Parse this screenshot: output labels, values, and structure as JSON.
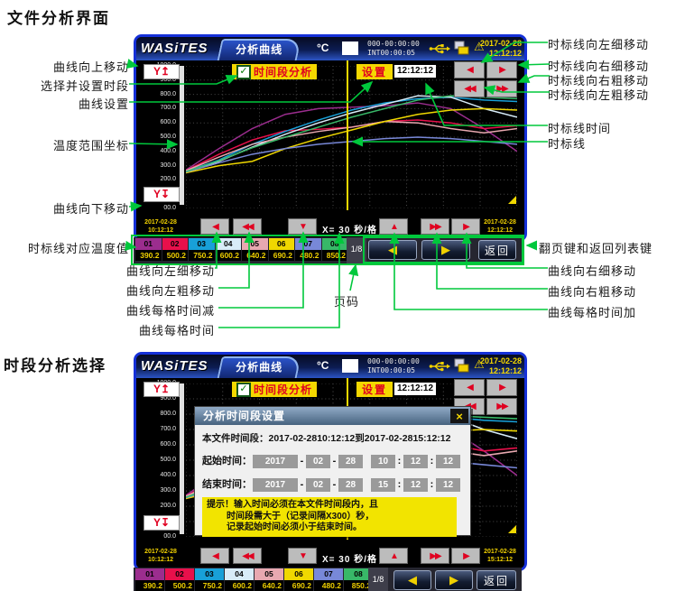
{
  "sections": {
    "file_analysis": "文件分析界面",
    "period_select": "时段分析选择"
  },
  "device": {
    "brand": "WASiTES",
    "tab": "分析曲线",
    "unit": "°C",
    "counter_line1": "000-00:00:00",
    "counter_line2": "INT00:00:05",
    "header_date": "2017-02-28",
    "header_time": "12:12:12",
    "checkbox_label": "时间段分析",
    "settings_button": "设置",
    "marker_time": "12:12:12",
    "x_scale_label": "X= 30 秒/格",
    "start_date": "2017-02-28",
    "start_time": "10:12:12",
    "end_date": "2017-02-28",
    "end_time_a": "12:12:12",
    "end_time_b": "15:12:12",
    "page_indicator": "1/8",
    "back_button": "返回",
    "glyphs": {
      "yup": "Y↥",
      "ydn": "Y↧",
      "left": "◀",
      "right": "▶",
      "left2": "◀◀",
      "right2": "▶▶",
      "up": "▲",
      "down": "▼",
      "check": "✓",
      "close": "×",
      "usb_icon": "usb-icon",
      "printer_icon": "printer-icon",
      "warning_icon": "⚠"
    }
  },
  "dialog": {
    "title": "分析时间段设置",
    "file_period_label": "本文件时间段：",
    "file_period_value": "2017-02-2810:12:12到2017-02-2815:12:12",
    "start_label": "起始时间：",
    "end_label": "结束时间：",
    "start_parts": [
      "2017",
      "02",
      "28",
      "10",
      "12",
      "12"
    ],
    "end_parts": [
      "2017",
      "02",
      "28",
      "15",
      "12",
      "12"
    ],
    "hint_lines": [
      "提示！输入时间必须在本文件时间段内，且",
      "时间段需大于（记录间隔X300）秒，",
      "记录起始时间必须小于结束时间。"
    ]
  },
  "annotations": {
    "left": [
      "曲线向上移动",
      "选择并设置时段",
      "曲线设置",
      "温度范围坐标",
      "曲线向下移动",
      "时标线对应温度值"
    ],
    "right": [
      "时标线向左细移动",
      "时标线向右细移动",
      "时标线向右粗移动",
      "时标线向左粗移动",
      "时标线时间",
      "时标线"
    ],
    "bottom_left": [
      "曲线向左细移动",
      "曲线向左粗移动",
      "曲线每格时间减",
      "曲线每格时间",
      "页码"
    ],
    "bottom_right": [
      "翻页键和返回列表键",
      "曲线向右细移动",
      "曲线向右粗移动",
      "曲线每格时间加"
    ],
    "accent_color": "#00c83c"
  },
  "chart_data": {
    "type": "line",
    "title": "分析曲线",
    "ylabel": "温度范围坐标 (°C)",
    "ylim": [
      0,
      1000
    ],
    "y_ticks": [
      "1000.0",
      "900.0",
      "800.0",
      "700.0",
      "600.0",
      "500.0",
      "400.0",
      "300.0",
      "200.0",
      "100.0",
      "00.0"
    ],
    "x_scale": "X= 30 秒/格",
    "x_range_a": [
      "2017-02-28 10:12:12",
      "2017-02-28 12:12:12"
    ],
    "x_range_b": [
      "2017-02-28 10:12:12",
      "2017-02-28 15:12:12"
    ],
    "marker_time": "12:12:12",
    "grid": true,
    "x_percent": [
      0,
      10,
      20,
      30,
      40,
      50,
      60,
      70,
      80,
      90,
      100
    ],
    "series": [
      {
        "name": "01",
        "color": "#9b2d8e",
        "marker_value": 390.2,
        "values": [
          270,
          420,
          560,
          660,
          700,
          710,
          720,
          740,
          700,
          560,
          400
        ]
      },
      {
        "name": "02",
        "color": "#e8104b",
        "marker_value": 500.2,
        "values": [
          265,
          380,
          480,
          545,
          555,
          570,
          610,
          620,
          600,
          560,
          580
        ]
      },
      {
        "name": "03",
        "color": "#18a0d8",
        "marker_value": 750.2,
        "values": [
          260,
          340,
          450,
          540,
          620,
          690,
          740,
          770,
          780,
          760,
          750
        ]
      },
      {
        "name": "04",
        "color": "#d8ecf8",
        "marker_value": 600.2,
        "values": [
          255,
          330,
          430,
          520,
          600,
          670,
          730,
          790,
          780,
          700,
          640
        ]
      },
      {
        "name": "05",
        "color": "#e8a8b0",
        "marker_value": 640.2,
        "values": [
          265,
          360,
          450,
          500,
          540,
          570,
          610,
          600,
          560,
          530,
          560
        ]
      },
      {
        "name": "06",
        "color": "#f0d800",
        "marker_value": 690.2,
        "values": [
          250,
          300,
          330,
          420,
          490,
          550,
          610,
          660,
          690,
          700,
          690
        ]
      },
      {
        "name": "07",
        "color": "#7888d8",
        "marker_value": 480.2,
        "values": [
          255,
          320,
          380,
          420,
          450,
          470,
          490,
          500,
          490,
          470,
          450
        ]
      },
      {
        "name": "08",
        "color": "#38b868",
        "marker_value": 850.2,
        "values": [
          258,
          335,
          425,
          500,
          570,
          640,
          700,
          760,
          790,
          780,
          770
        ]
      }
    ]
  }
}
